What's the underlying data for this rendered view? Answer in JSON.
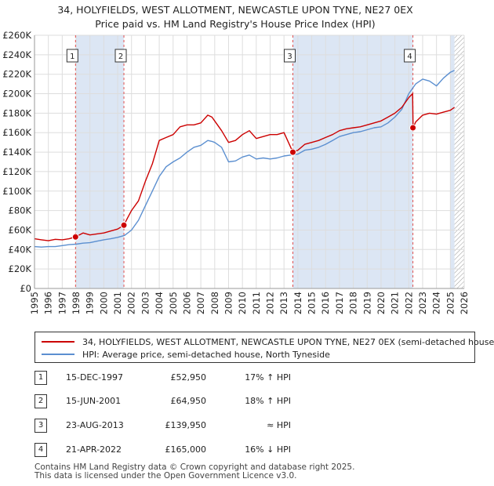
{
  "title": {
    "line1": "34, HOLYFIELDS, WEST ALLOTMENT, NEWCASTLE UPON TYNE, NE27 0EX",
    "line2": "Price paid vs. HM Land Registry's House Price Index (HPI)"
  },
  "colors": {
    "price_paid": "#cc0000",
    "hpi": "#5b8fd0",
    "shade": "#dce6f4",
    "grid": "#dddddd",
    "marker_line": "#e05050"
  },
  "chart_data": {
    "type": "line",
    "title": "Price paid vs. HM Land Registry's House Price Index (HPI)",
    "xlabel": "",
    "ylabel": "",
    "xlim": [
      1995,
      2026
    ],
    "ylim": [
      0,
      260000
    ],
    "grid": true,
    "x_ticks": [
      "1995",
      "1996",
      "1997",
      "1998",
      "1999",
      "2000",
      "2001",
      "2002",
      "2003",
      "2004",
      "2005",
      "2006",
      "2007",
      "2008",
      "2009",
      "2010",
      "2011",
      "2012",
      "2013",
      "2014",
      "2015",
      "2016",
      "2017",
      "2018",
      "2019",
      "2020",
      "2021",
      "2022",
      "2023",
      "2024",
      "2025",
      "2026"
    ],
    "y_ticks": [
      {
        "value": 0,
        "label": "£0"
      },
      {
        "value": 20000,
        "label": "£20K"
      },
      {
        "value": 40000,
        "label": "£40K"
      },
      {
        "value": 60000,
        "label": "£60K"
      },
      {
        "value": 80000,
        "label": "£80K"
      },
      {
        "value": 100000,
        "label": "£100K"
      },
      {
        "value": 120000,
        "label": "£120K"
      },
      {
        "value": 140000,
        "label": "£140K"
      },
      {
        "value": 160000,
        "label": "£160K"
      },
      {
        "value": 180000,
        "label": "£180K"
      },
      {
        "value": 200000,
        "label": "£200K"
      },
      {
        "value": 220000,
        "label": "£220K"
      },
      {
        "value": 240000,
        "label": "£240K"
      },
      {
        "value": 260000,
        "label": "£260K"
      }
    ],
    "series": [
      {
        "name": "34, HOLYFIELDS, WEST ALLOTMENT, NEWCASTLE UPON TYNE, NE27 0EX (semi-detached house",
        "x": [
          1995.0,
          1995.5,
          1996.0,
          1996.5,
          1997.0,
          1997.5,
          1997.96,
          1998.5,
          1999.0,
          1999.5,
          2000.0,
          2000.5,
          2001.0,
          2001.45,
          2001.7,
          2002.0,
          2002.5,
          2003.0,
          2003.5,
          2004.0,
          2004.5,
          2005.0,
          2005.5,
          2006.0,
          2006.5,
          2007.0,
          2007.5,
          2007.8,
          2008.0,
          2008.5,
          2009.0,
          2009.5,
          2010.0,
          2010.5,
          2011.0,
          2011.5,
          2012.0,
          2012.5,
          2013.0,
          2013.64,
          2014.0,
          2014.5,
          2015.0,
          2015.5,
          2016.0,
          2016.5,
          2017.0,
          2017.5,
          2018.0,
          2018.5,
          2019.0,
          2019.5,
          2020.0,
          2020.5,
          2021.0,
          2021.5,
          2022.0,
          2022.28,
          2022.31,
          2022.5,
          2023.0,
          2023.5,
          2024.0,
          2024.5,
          2025.0,
          2025.3
        ],
        "values": [
          51000,
          50000,
          49000,
          50500,
          50000,
          51000,
          52950,
          57000,
          55000,
          56000,
          57000,
          59000,
          61000,
          64950,
          72000,
          80000,
          90000,
          110000,
          128000,
          152000,
          155000,
          158000,
          166000,
          168000,
          168000,
          170000,
          178000,
          176000,
          172000,
          162000,
          150000,
          152000,
          158000,
          162000,
          154000,
          156000,
          158000,
          158000,
          160000,
          139950,
          142000,
          148000,
          150000,
          152000,
          155000,
          158000,
          162000,
          164000,
          165000,
          166000,
          168000,
          170000,
          172000,
          176000,
          180000,
          186000,
          196000,
          200000,
          165000,
          171000,
          178000,
          180000,
          179000,
          181000,
          183000,
          186000
        ]
      },
      {
        "name": "HPI: Average price, semi-detached house, North Tyneside",
        "x": [
          1995.0,
          1995.5,
          1996.0,
          1996.5,
          1997.0,
          1997.5,
          1998.0,
          1998.5,
          1999.0,
          1999.5,
          2000.0,
          2000.5,
          2001.0,
          2001.5,
          2002.0,
          2002.5,
          2003.0,
          2003.5,
          2004.0,
          2004.5,
          2005.0,
          2005.5,
          2006.0,
          2006.5,
          2007.0,
          2007.5,
          2007.8,
          2008.0,
          2008.5,
          2009.0,
          2009.5,
          2010.0,
          2010.5,
          2011.0,
          2011.5,
          2012.0,
          2012.5,
          2013.0,
          2013.5,
          2014.0,
          2014.5,
          2015.0,
          2015.5,
          2016.0,
          2016.5,
          2017.0,
          2017.5,
          2018.0,
          2018.5,
          2019.0,
          2019.5,
          2020.0,
          2020.5,
          2021.0,
          2021.5,
          2022.0,
          2022.5,
          2023.0,
          2023.5,
          2024.0,
          2024.5,
          2025.0,
          2025.3
        ],
        "values": [
          43000,
          42500,
          43000,
          43000,
          44000,
          45000,
          45500,
          46500,
          47000,
          48500,
          50000,
          51000,
          52500,
          54500,
          60000,
          70000,
          85000,
          100000,
          115000,
          125000,
          130000,
          134000,
          140000,
          145000,
          147000,
          152000,
          151000,
          150000,
          145000,
          130000,
          131000,
          135000,
          137000,
          133000,
          134000,
          133000,
          134000,
          136000,
          137000,
          138000,
          142000,
          143000,
          145000,
          148000,
          152000,
          156000,
          158000,
          160000,
          161000,
          163000,
          165000,
          166000,
          170000,
          176000,
          184000,
          200000,
          210000,
          215000,
          213000,
          208000,
          216000,
          222000,
          224000
        ]
      }
    ],
    "sales": [
      {
        "label": "1",
        "x": 1997.96,
        "value": 52950
      },
      {
        "label": "2",
        "x": 2001.45,
        "value": 64950
      },
      {
        "label": "3",
        "x": 2013.64,
        "value": 139950
      },
      {
        "label": "4",
        "x": 2022.3,
        "value": 165000
      }
    ],
    "shaded_ranges": [
      [
        1997.96,
        2001.45
      ],
      [
        2013.64,
        2022.3
      ],
      [
        2025.0,
        2025.3
      ]
    ],
    "hatched_range": [
      2025.3,
      2026.0
    ]
  },
  "legend": {
    "price_paid_label": "34, HOLYFIELDS, WEST ALLOTMENT, NEWCASTLE UPON TYNE, NE27 0EX (semi-detached house",
    "hpi_label": "HPI: Average price, semi-detached house, North Tyneside"
  },
  "sales_table": [
    {
      "num": "1",
      "date": "15-DEC-1997",
      "price": "£52,950",
      "hpi": "17% ↑ HPI"
    },
    {
      "num": "2",
      "date": "15-JUN-2001",
      "price": "£64,950",
      "hpi": "18% ↑ HPI"
    },
    {
      "num": "3",
      "date": "23-AUG-2013",
      "price": "£139,950",
      "hpi": "≈ HPI"
    },
    {
      "num": "4",
      "date": "21-APR-2022",
      "price": "£165,000",
      "hpi": "16% ↓ HPI"
    }
  ],
  "footer": {
    "line1": "Contains HM Land Registry data © Crown copyright and database right 2025.",
    "line2": "This data is licensed under the Open Government Licence v3.0."
  }
}
